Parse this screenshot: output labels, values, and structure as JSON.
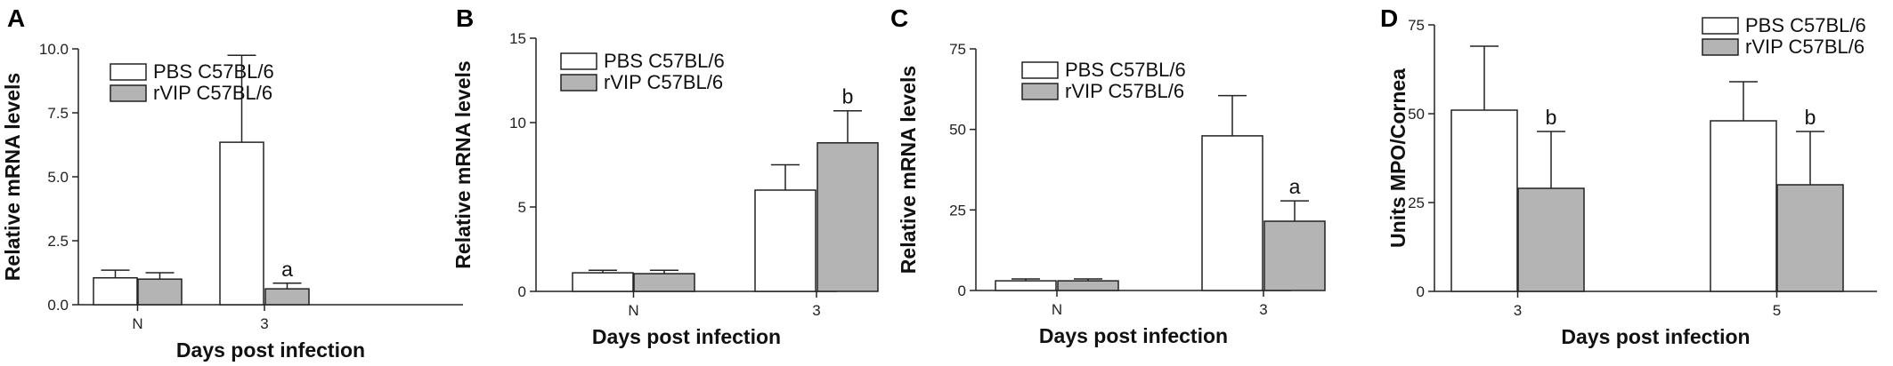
{
  "colors": {
    "pbs": "#ffffff",
    "rvip": "#b4b4b4",
    "stroke": "#222222"
  },
  "chart_data": [
    {
      "panel": "A",
      "type": "bar",
      "categories": [
        "N",
        "3"
      ],
      "xlabel": "Days post infection",
      "ylabel": "Relative mRNA levels",
      "ylim": [
        0,
        10
      ],
      "yticks": [
        "0.0",
        "2.5",
        "5.0",
        "7.5",
        "10.0"
      ],
      "legend_position": "top-left",
      "series": [
        {
          "name": "PBS C57BL/6",
          "values": [
            1.05,
            6.35
          ],
          "errors": [
            0.3,
            3.4
          ],
          "marks": [
            "",
            ""
          ]
        },
        {
          "name": "rVIP C57BL/6",
          "values": [
            1.0,
            0.62
          ],
          "errors": [
            0.25,
            0.22
          ],
          "marks": [
            "",
            "a"
          ]
        }
      ]
    },
    {
      "panel": "B",
      "type": "bar",
      "categories": [
        "N",
        "3"
      ],
      "xlabel": "Days post infection",
      "ylabel": "Relative mRNA levels",
      "ylim": [
        0,
        15
      ],
      "yticks": [
        "0",
        "5",
        "10",
        "15"
      ],
      "legend_position": "top-left",
      "series": [
        {
          "name": "PBS C57BL/6",
          "values": [
            1.1,
            6.0
          ],
          "errors": [
            0.15,
            1.5
          ],
          "marks": [
            "",
            ""
          ]
        },
        {
          "name": "rVIP C57BL/6",
          "values": [
            1.05,
            8.8
          ],
          "errors": [
            0.2,
            1.9
          ],
          "marks": [
            "",
            "b"
          ]
        }
      ]
    },
    {
      "panel": "C",
      "type": "bar",
      "categories": [
        "N",
        "3"
      ],
      "xlabel": "Days post infection",
      "ylabel": "Relative mRNA levels",
      "ylim": [
        0,
        75
      ],
      "yticks": [
        "0",
        "25",
        "50",
        "75"
      ],
      "legend_position": "top-left",
      "series": [
        {
          "name": "PBS C57BL/6",
          "values": [
            3.0,
            48.0
          ],
          "errors": [
            0.6,
            12.5
          ],
          "marks": [
            "",
            ""
          ]
        },
        {
          "name": "rVIP C57BL/6",
          "values": [
            3.0,
            21.5
          ],
          "errors": [
            0.6,
            6.3
          ],
          "marks": [
            "",
            "a"
          ]
        }
      ]
    },
    {
      "panel": "D",
      "type": "bar",
      "categories": [
        "3",
        "5"
      ],
      "xlabel": "Days post infection",
      "ylabel": "Units MPO/Cornea",
      "ylim": [
        0,
        75
      ],
      "yticks": [
        "0",
        "25",
        "50",
        "75"
      ],
      "legend_position": "top-right",
      "series": [
        {
          "name": "PBS C57BL/6",
          "values": [
            51.0,
            48.0
          ],
          "errors": [
            18.0,
            11.0
          ],
          "marks": [
            "",
            ""
          ]
        },
        {
          "name": "rVIP C57BL/6",
          "values": [
            29.0,
            30.0
          ],
          "errors": [
            16.0,
            15.0
          ],
          "marks": [
            "b",
            "b"
          ]
        }
      ]
    }
  ]
}
